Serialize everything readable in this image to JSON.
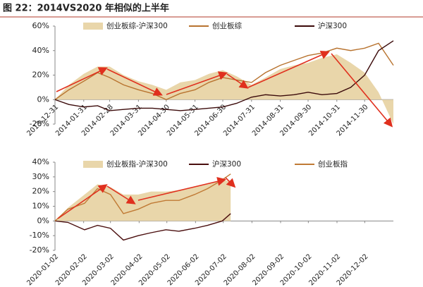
{
  "title": "图 22：2014VS2020 年相似的上半年",
  "chart_data": [
    {
      "type": "line",
      "x": [
        "2013-12-31",
        "2014-01-15",
        "2014-01-31",
        "2014-02-15",
        "2014-02-28",
        "2014-03-15",
        "2014-03-31",
        "2014-04-15",
        "2014-04-30",
        "2014-05-15",
        "2014-05-31",
        "2014-06-15",
        "2014-06-30",
        "2014-07-15",
        "2014-07-31",
        "2014-08-15",
        "2014-08-31",
        "2014-09-15",
        "2014-09-30",
        "2014-10-15",
        "2014-10-31",
        "2014-11-15",
        "2014-11-30",
        "2014-12-15",
        "2014-12-31"
      ],
      "series": [
        {
          "name": "创业板综-沪深300",
          "style": "area",
          "color": "#e9d6aa",
          "values": [
            0,
            12,
            21,
            27,
            27,
            20,
            15,
            12,
            8,
            14,
            16,
            21,
            24,
            19,
            12,
            18,
            25,
            28,
            30,
            34,
            37,
            30,
            22,
            6,
            -20
          ]
        },
        {
          "name": "创业板综",
          "style": "line",
          "color": "#b8732f",
          "values": [
            0,
            8,
            15,
            22,
            18,
            12,
            8,
            5,
            0,
            5,
            8,
            14,
            18,
            16,
            14,
            22,
            28,
            32,
            36,
            38,
            42,
            40,
            42,
            46,
            28
          ]
        },
        {
          "name": "沪深300",
          "style": "line",
          "color": "#3b0a0a",
          "values": [
            0,
            -4,
            -6,
            -5,
            -9,
            -8,
            -7,
            -7,
            -8,
            -9,
            -8,
            -7,
            -6,
            -3,
            2,
            4,
            3,
            4,
            6,
            4,
            5,
            10,
            20,
            40,
            48
          ]
        }
      ],
      "xlim": [
        "2013-12-31",
        "2014-12-31"
      ],
      "xticks": [
        "2013-12-31",
        "2014-01-31",
        "2014-02-28",
        "2014-03-31",
        "2014-04-30",
        "2014-05-31",
        "2014-06-30",
        "2014-07-31",
        "2014-08-31",
        "2014-09-30",
        "2014-10-31",
        "2014-11-30"
      ],
      "ylim": [
        -20,
        60
      ],
      "yticks": [
        {
          "value": -20,
          "label": "-20%"
        },
        {
          "value": 0,
          "label": "0%"
        },
        {
          "value": 20,
          "label": "20%"
        },
        {
          "value": 40,
          "label": "40%"
        },
        {
          "value": 60,
          "label": "60%"
        }
      ]
    },
    {
      "type": "line",
      "x": [
        "2020-01-02",
        "2020-01-16",
        "2020-02-03",
        "2020-02-17",
        "2020-03-02",
        "2020-03-16",
        "2020-04-01",
        "2020-04-15",
        "2020-05-01",
        "2020-05-15",
        "2020-06-01",
        "2020-06-15",
        "2020-07-01",
        "2020-07-10"
      ],
      "series": [
        {
          "name": "创业板指-沪深300",
          "style": "area",
          "color": "#e9d6aa",
          "values": [
            0,
            9,
            18,
            25,
            23,
            18,
            18,
            20,
            20,
            21,
            23,
            25,
            28,
            27
          ]
        },
        {
          "name": "沪深300",
          "style": "line",
          "color": "#4a0e0e",
          "values": [
            0,
            -1,
            -6,
            -3,
            -5,
            -13,
            -10,
            -8,
            -6,
            -7,
            -5,
            -3,
            0,
            5
          ]
        },
        {
          "name": "创业板指",
          "style": "line",
          "color": "#c07a35",
          "values": [
            0,
            8,
            12,
            22,
            18,
            5,
            8,
            12,
            14,
            14,
            18,
            22,
            28,
            32
          ]
        }
      ],
      "xlim": [
        "2020-01-02",
        "2021-01-02"
      ],
      "xticks": [
        "2020-01-02",
        "2020-02-02",
        "2020-03-02",
        "2020-04-02",
        "2020-05-02",
        "2020-06-02",
        "2020-07-02",
        "2020-08-02",
        "2020-09-02",
        "2020-10-02",
        "2020-11-02",
        "2020-12-02"
      ],
      "ylim": [
        -20,
        40
      ],
      "yticks": [
        {
          "value": -20,
          "label": "-20%"
        },
        {
          "value": -10,
          "label": "-10%"
        },
        {
          "value": 0,
          "label": "0%"
        },
        {
          "value": 10,
          "label": "10%"
        },
        {
          "value": 20,
          "label": "20%"
        },
        {
          "value": 30,
          "label": "30%"
        },
        {
          "value": 40,
          "label": "40%"
        }
      ]
    }
  ]
}
